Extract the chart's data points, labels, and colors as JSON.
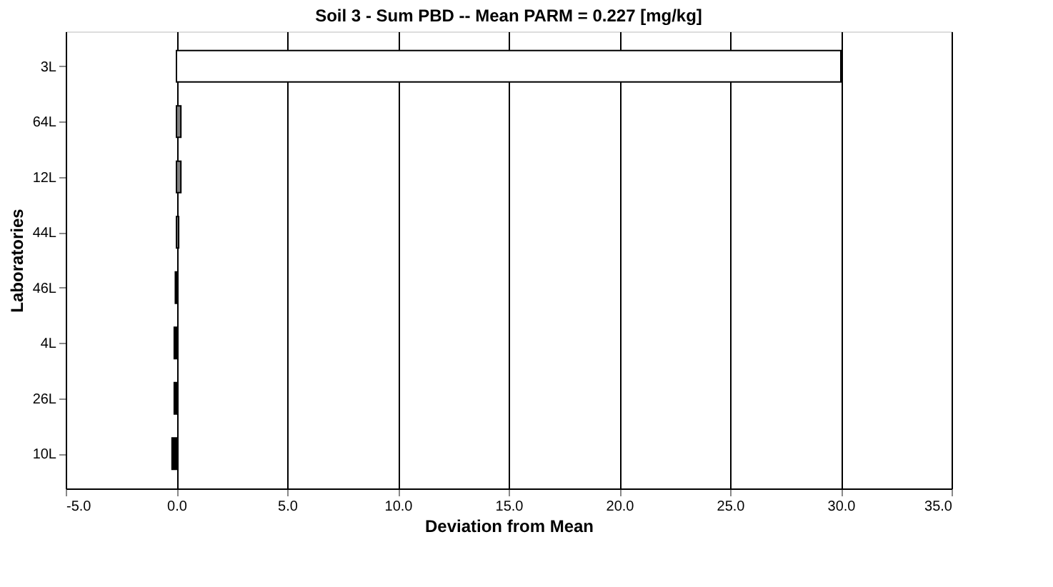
{
  "chart_data": {
    "type": "bar",
    "orientation": "horizontal",
    "title": "Soil 3 - Sum PBD  --  Mean PARM = 0.227 [mg/kg]",
    "xlabel": "Deviation from Mean",
    "ylabel": "Laboratories",
    "categories": [
      "3L",
      "64L",
      "12L",
      "44L",
      "46L",
      "4L",
      "26L",
      "10L"
    ],
    "values": [
      30.0,
      0.2,
      0.2,
      0.1,
      -0.05,
      -0.1,
      -0.1,
      -0.2
    ],
    "colors": [
      "#ffffff",
      "#808080",
      "#808080",
      "#808080",
      "#000000",
      "#000000",
      "#000000",
      "#000000"
    ],
    "xlim": [
      -5.0,
      35.0
    ],
    "xticks": [
      {
        "value": -5,
        "label": "-5.0"
      },
      {
        "value": 0,
        "label": "0.0"
      },
      {
        "value": 5,
        "label": "5.0"
      },
      {
        "value": 10,
        "label": "10.0"
      },
      {
        "value": 15,
        "label": "15.0"
      },
      {
        "value": 20,
        "label": "20.0"
      },
      {
        "value": 25,
        "label": "25.0"
      },
      {
        "value": 30,
        "label": "30.0"
      },
      {
        "value": 35,
        "label": "35.0"
      }
    ],
    "grid": "x"
  }
}
